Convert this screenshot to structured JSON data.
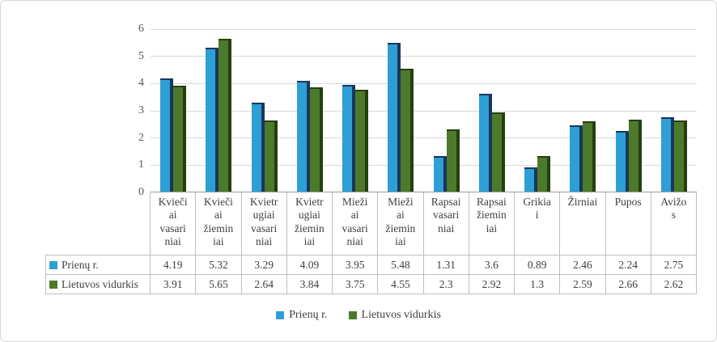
{
  "chart_data": {
    "type": "bar",
    "title": "",
    "xlabel": "",
    "ylabel": "",
    "categories": [
      "Kviečiai vasariniai",
      "Kviečiai žieminiai",
      "Kvietrugiai vasariniai",
      "Kvietrugiai žieminiai",
      "Miežiai vasariniai",
      "Miežiai žieminiai",
      "Rapsai vasariniai",
      "Rapsai žieminiai",
      "Grikiai",
      "Žirniai",
      "Pupos",
      "Avižos"
    ],
    "categories_display": [
      "Kvieči\nai\nvasari\nniai",
      "Kvieči\nai\nžiemin\niai",
      "Kvietr\nugiai\nvasari\nniai",
      "Kvietr\nugiai\nžiemin\niai",
      "Mieži\nai\nvasari\nniai",
      "Mieži\nai\nžiemin\niai",
      "Rapsai\nvasari\nniai",
      "Rapsai\nžiemin\niai",
      "Grikia\ni",
      "Žirniai",
      "Pupos",
      "Avižo\ns"
    ],
    "series": [
      {
        "name": "Prienų r.",
        "values": [
          4.19,
          5.32,
          3.29,
          4.09,
          3.95,
          5.48,
          1.31,
          3.6,
          0.89,
          2.46,
          2.24,
          2.75
        ],
        "display_values": [
          "4.19",
          "5.32",
          "3.29",
          "4.09",
          "3.95",
          "5.48",
          "1.31",
          "3.6",
          "0.89",
          "2.46",
          "2.24",
          "2.75"
        ],
        "color": "#2e9fd4",
        "side_color": "#17375e"
      },
      {
        "name": "Lietuvos vidurkis",
        "values": [
          3.91,
          5.65,
          2.64,
          3.84,
          3.75,
          4.55,
          2.3,
          2.92,
          1.3,
          2.59,
          2.66,
          2.62
        ],
        "display_values": [
          "3.91",
          "5.65",
          "2.64",
          "3.84",
          "3.75",
          "4.55",
          "2.3",
          "2.92",
          "1.3",
          "2.59",
          "2.66",
          "2.62"
        ],
        "color": "#4d7a2a",
        "side_color": "#253f10"
      }
    ],
    "ylim": [
      0,
      6
    ],
    "yticks": [
      0,
      1,
      2,
      3,
      4,
      5,
      6
    ],
    "grid": true,
    "legend_position": "bottom",
    "data_table_shown": true
  },
  "colors": {
    "gridline": "#d9d9d9",
    "axis_line": "#9b9b9b",
    "table_border": "#bfbfbf",
    "text": "#404040"
  }
}
